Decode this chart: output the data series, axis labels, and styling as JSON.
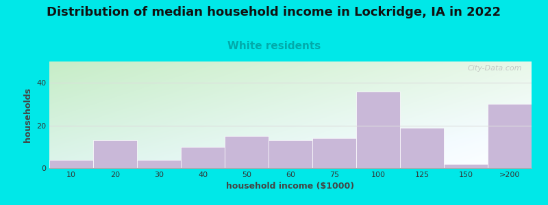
{
  "title": "Distribution of median household income in Lockridge, IA in 2022",
  "subtitle": "White residents",
  "xlabel": "household income ($1000)",
  "ylabel": "households",
  "background_outer": "#00e8e8",
  "bar_color": "#c9b8d8",
  "bar_edge_color": "#ffffff",
  "categories": [
    "10",
    "20",
    "30",
    "40",
    "50",
    "60",
    "75",
    "100",
    "125",
    "150",
    ">200"
  ],
  "values": [
    4,
    13,
    4,
    10,
    15,
    13,
    14,
    36,
    19,
    2,
    30
  ],
  "ylim": [
    0,
    50
  ],
  "yticks": [
    0,
    20,
    40
  ],
  "title_fontsize": 13,
  "subtitle_fontsize": 11,
  "subtitle_color": "#00aaaa",
  "axis_label_fontsize": 9,
  "tick_fontsize": 8,
  "watermark": "City-Data.com",
  "grad_color_bottom_left": "#c8eab4",
  "grad_color_top_right": "#f0f8f0",
  "grad_color_top_left": "#e8f8f8",
  "grad_color_bottom_right": "#f8fff8"
}
